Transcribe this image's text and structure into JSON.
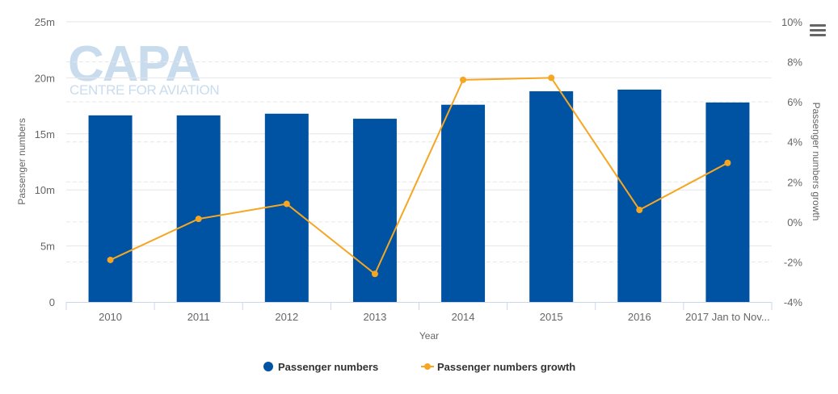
{
  "watermark": {
    "logo": "CAPA",
    "subtitle": "CENTRE FOR AVIATION"
  },
  "menu_icon": "hamburger-menu-icon",
  "chart_data": {
    "type": "bar+line",
    "title": "",
    "xlabel": "Year",
    "ylabel_left": "Passenger numbers",
    "ylabel_right": "Passenger numbers growth",
    "categories": [
      "2010",
      "2011",
      "2012",
      "2013",
      "2014",
      "2015",
      "2016",
      "2017 Jan to Nov..."
    ],
    "left_axis": {
      "min": 0,
      "max": 25000000,
      "ticks": [
        0,
        5000000,
        10000000,
        15000000,
        20000000,
        25000000
      ],
      "tick_labels": [
        "0",
        "5m",
        "10m",
        "15m",
        "20m",
        "25m"
      ]
    },
    "right_axis": {
      "min": -4,
      "max": 10,
      "ticks": [
        -4,
        -2,
        0,
        2,
        4,
        6,
        8,
        10
      ],
      "tick_labels": [
        "-4%",
        "-2%",
        "0%",
        "2%",
        "4%",
        "6%",
        "8%",
        "10%"
      ]
    },
    "series": [
      {
        "name": "Passenger numbers",
        "type": "bar",
        "axis": "left",
        "color": "#0052a2",
        "values": [
          16650000,
          16650000,
          16800000,
          16350000,
          17600000,
          18800000,
          18950000,
          17800000
        ]
      },
      {
        "name": "Passenger numbers growth",
        "type": "line",
        "axis": "right",
        "color": "#f5a623",
        "values": [
          -1.9,
          0.15,
          0.9,
          -2.6,
          7.1,
          7.2,
          0.6,
          2.95
        ]
      }
    ],
    "grid": true,
    "legend_position": "bottom-center"
  }
}
